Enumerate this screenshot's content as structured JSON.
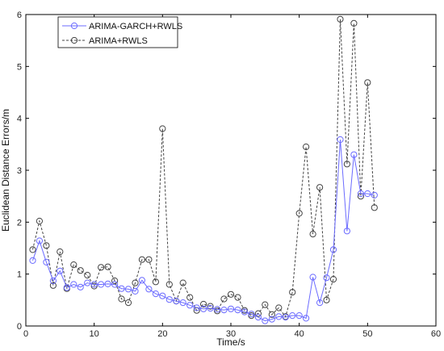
{
  "chart_data": {
    "type": "line",
    "title": "",
    "xlabel": "Time/s",
    "ylabel": "Euclidean Distance Errors/m",
    "xlim": [
      0,
      60
    ],
    "ylim": [
      0,
      6
    ],
    "xticks": [
      "0",
      "10",
      "20",
      "30",
      "40",
      "50",
      "60"
    ],
    "yticks": [
      "0",
      "1",
      "2",
      "3",
      "4",
      "5",
      "6"
    ],
    "grid": false,
    "legend_position": "top-left",
    "x": [
      1,
      2,
      3,
      4,
      5,
      6,
      7,
      8,
      9,
      10,
      11,
      12,
      13,
      14,
      15,
      16,
      17,
      18,
      19,
      20,
      21,
      22,
      23,
      24,
      25,
      26,
      27,
      28,
      29,
      30,
      31,
      32,
      33,
      34,
      35,
      36,
      37,
      38,
      39,
      40,
      41,
      42,
      43,
      44,
      45,
      46,
      47,
      48,
      49,
      50,
      51
    ],
    "series": [
      {
        "name": "ARIMA-GARCH+RWLS",
        "color": "#6b6bff",
        "line_style": "solid",
        "marker": "circle",
        "values": [
          1.26,
          1.64,
          1.23,
          0.87,
          1.06,
          0.74,
          0.8,
          0.75,
          0.83,
          0.8,
          0.8,
          0.81,
          0.8,
          0.72,
          0.71,
          0.67,
          0.88,
          0.71,
          0.62,
          0.58,
          0.51,
          0.48,
          0.45,
          0.4,
          0.35,
          0.33,
          0.34,
          0.32,
          0.31,
          0.33,
          0.31,
          0.27,
          0.23,
          0.17,
          0.1,
          0.13,
          0.18,
          0.17,
          0.2,
          0.2,
          0.15,
          0.94,
          0.45,
          0.93,
          1.47,
          3.59,
          1.83,
          3.3,
          2.55,
          2.55,
          2.52
        ]
      },
      {
        "name": "ARIMA+RWLS",
        "color": "#444444",
        "line_style": "dashed",
        "marker": "circle",
        "values": [
          1.47,
          2.02,
          1.55,
          0.78,
          1.43,
          0.72,
          1.18,
          1.07,
          0.98,
          0.77,
          1.13,
          1.14,
          0.87,
          0.52,
          0.45,
          0.83,
          1.28,
          1.28,
          0.85,
          3.8,
          0.8,
          0.48,
          0.83,
          0.55,
          0.3,
          0.42,
          0.38,
          0.29,
          0.52,
          0.61,
          0.55,
          0.3,
          0.2,
          0.24,
          0.41,
          0.22,
          0.35,
          0.18,
          0.65,
          2.17,
          3.45,
          1.77,
          2.67,
          0.5,
          0.9,
          5.91,
          3.12,
          5.83,
          2.5,
          4.69,
          2.28
        ]
      }
    ]
  }
}
